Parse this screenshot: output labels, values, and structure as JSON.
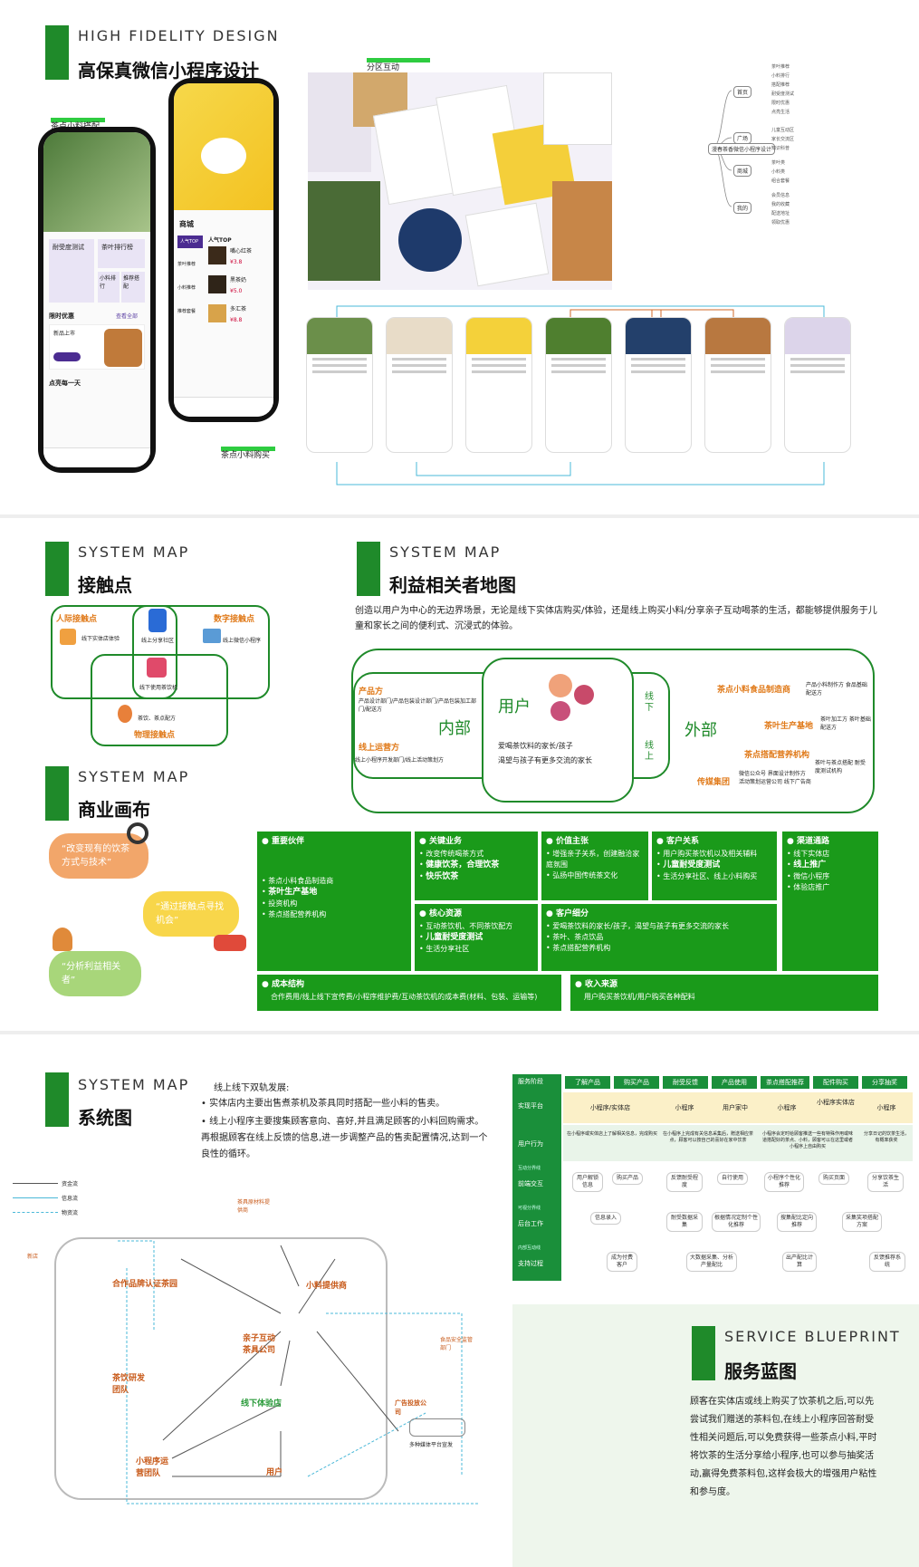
{
  "section1": {
    "title_en": "HIGH FIDELITY DESIGN",
    "title_zh": "高保真微信小程序设计",
    "label_mix": "茶点小料搭配",
    "label_interact": "分区互动",
    "label_buy": "茶点小料购买",
    "phone_left": {
      "card1": "茶叶排行榜",
      "card2": "耐受度测试",
      "card3": "小料排行",
      "card4": "推荐搭配",
      "heading": "限时优惠",
      "promo": "新品上市",
      "footer": "点亮每一天",
      "more": "查看全部"
    },
    "phone_right": {
      "shop": "商城",
      "hot": "人气TOP",
      "item1": "嘴心红茶",
      "item2": "黑茶奶",
      "item3": "多汇茶",
      "price1": "¥3.8",
      "price2": "¥5.0",
      "price3": "¥8.8",
      "side1": "人气TOP",
      "side2": "茶叶推荐",
      "side3": "小料推荐",
      "side4": "推荐套餐"
    },
    "mindmap": {
      "root": "漫春茶香微信小程序设计",
      "branches": [
        {
          "name": "首页",
          "leaves": [
            "茶叶推荐",
            "小料排行",
            "搭配推荐",
            "耐受度测试",
            "限时优惠",
            "点亮生活"
          ]
        },
        {
          "name": "广场",
          "leaves": [
            "儿童互动区",
            "家长交流区",
            "知识科普"
          ]
        },
        {
          "name": "商城",
          "leaves": [
            "茶叶类",
            "小料类",
            "组合套餐"
          ]
        },
        {
          "name": "我的",
          "leaves": [
            "会员信息",
            "我的收藏",
            "配送地址",
            "领取优惠"
          ]
        }
      ]
    }
  },
  "section2": {
    "touch": {
      "title_en": "SYSTEM MAP",
      "title_zh": "接触点",
      "box_human": "人际接触点",
      "box_digital": "数字接触点",
      "box_physical": "物理接触点",
      "item_store": "线下实体店体验",
      "item_share": "线上分享社区",
      "item_wechat": "线上微信小程序",
      "item_vending": "线下使用茶饮机",
      "item_tea": "茶饮、茶点配方"
    },
    "stake": {
      "title_en": "SYSTEM MAP",
      "title_zh": "利益相关者地图",
      "desc": "创造以用户为中心的无边界场景，无论是线下实体店购买/体验，还是线上购买小料/分享亲子互动喝茶的生活，都能够提供服务于儿童和家长之间的便利式、沉浸式的体验。",
      "user": "用户",
      "user_desc1": "爱喝茶饮料的家长/孩子",
      "user_desc2": "渴望与孩子有更多交流的家长",
      "inner": "内部",
      "outer": "外部",
      "offline": "线下",
      "online": "线上",
      "product": "产品方",
      "product_desc": "产品设计部门/产品包装设计部门/产品包装加工部门/配送方",
      "operator": "线上运营方",
      "operator_desc": "线上小程序开发部门/线上活动策划方",
      "snack": "茶点小料食品制造商",
      "snack_desc": "产品小料制作方 食品基础配送方",
      "base": "茶叶生产基地",
      "base_desc": "茶叶加工方 茶叶基础配送方",
      "nutrition": "茶点搭配营养机构",
      "nutrition_desc": "茶叶与茶点搭配 耐受度测试机构",
      "media": "传媒集团",
      "media_desc": "微信公众号 界面设计制作方 活动策划运营公司 线下广告商"
    },
    "canvas": {
      "title_en": "SYSTEM MAP",
      "title_zh": "商业画布",
      "bubble1": "“改变现有的饮茶方式与技术”",
      "bubble2": "“通过接触点寻找机会”",
      "bubble3": "“分析利益相关者”",
      "partners_title": "重要伙伴",
      "partners": [
        "茶点小料食品制造商",
        "茶叶生产基地",
        "投资机构",
        "茶点搭配营养机构"
      ],
      "activities_title": "关键业务",
      "activities": [
        "改变传统喝茶方式",
        "健康饮茶，合理饮茶",
        "快乐饮茶"
      ],
      "value_title": "价值主张",
      "value": [
        "增强亲子关系，创建融洽家庭氛围",
        "弘扬中国传统茶文化"
      ],
      "relation_title": "客户关系",
      "relation": [
        "用户购买茶饮机以及相关辅料",
        "儿童耐受度测试",
        "生活分享社区、线上小料购买"
      ],
      "channel_title": "渠道通路",
      "channel": [
        "线下实体店",
        "线上推广",
        "微信小程序",
        "体验店推广"
      ],
      "resource_title": "核心资源",
      "resource": [
        "互动茶饮机、不同茶饮配方",
        "儿童耐受度测试",
        "生活分享社区"
      ],
      "segment_title": "客户细分",
      "segment": [
        "爱喝茶饮料的家长/孩子，渴望与孩子有更多交流的家长",
        "茶叶、茶点饮品",
        "茶点搭配营养机构"
      ],
      "cost_title": "成本结构",
      "cost": "合作费用/线上线下宣传费/小程序维护费/互动茶饮机的成本费(材料、包装、运输等)",
      "revenue_title": "收入来源",
      "revenue": "用户购买茶饮机/用户购买各种配料"
    }
  },
  "section3": {
    "system": {
      "title_en": "SYSTEM MAP",
      "title_zh": "系统图",
      "desc_head": "线上线下双轨发展:",
      "desc1": "实体店内主要出售煮茶机及茶具同时搭配一些小料的售卖。",
      "desc2": "线上小程序主要搜集顾客意向、喜好,并且满足顾客的小料回购需求。再根据顾客在线上反馈的信息,进一步调整产品的售卖配置情况,达到一个良性的循环。",
      "legend": [
        "资金流",
        "信息流",
        "物资流"
      ],
      "nodes": {
        "brand": "合作品牌认证茶园",
        "supplier": "小料提供商",
        "company": "亲子互动茶具公司",
        "rd": "茶饮研发团队",
        "store": "线下体验店",
        "ops": "小程序运营团队",
        "user": "用户",
        "ad": "广告投放公司",
        "media": "多种媒体平台宣发",
        "food": "食品安全监管部门",
        "tea_supplier": "茶具原材料提供商",
        "new": "新店"
      }
    },
    "blueprint": {
      "title_en": "SERVICE BLUEPRINT",
      "title_zh": "服务蓝图",
      "desc": "顾客在实体店或线上购买了饮茶机之后,可以先尝试我们赠送的茶料包,在线上小程序回答耐受性相关问题后,可以免费获得一些茶点小料,平时将饮茶的生活分享给小程序,也可以参与抽奖活动,赢得免费茶料包,这样会极大的增强用户粘性和参与度。",
      "stages_label": "服务阶段",
      "stages": [
        "了解产品",
        "购买产品",
        "耐受反馈",
        "产品使用",
        "茶点搭配推荐",
        "配件购买",
        "分享抽奖"
      ],
      "rows": [
        "实现平台",
        "用户行为",
        "互动分界线",
        "前端交互",
        "可视分界线",
        "后台工作",
        "内部互动线",
        "支持过程"
      ],
      "platforms": [
        "小程序/实体店",
        "小程序",
        "用户家中",
        "小程序",
        "小程序实体店",
        "小程序"
      ],
      "behaviors": [
        "在小程序或实体店上了解相关信息，完成购买",
        "在小程序上完成有关信息采集后，赠送相应茶点，顾客可以按自己的喜好在家中饮茶",
        "小程序会定时给顾客推送一些有特殊作用或味道搭配好的茶点、小料，顾客可以在这里或者小程序上自由购买",
        "分享日记的饮茶生活，有概率获奖"
      ],
      "front": [
        "用户解锁信息",
        "购买产品",
        "反馈耐受程度",
        "自行使用",
        "小程序个性化推荐",
        "购买页面",
        "分享饮茶生活"
      ],
      "back": [
        "信息录入",
        "耐受数据采集",
        "根据情况定制个性化推荐",
        "搜集配比定向推荐",
        "采集奖项搭配方案"
      ],
      "support": [
        "成为付费客户",
        "大数据采集、分析产量配比",
        "出产配比计算",
        "反馈推荐系统"
      ]
    }
  }
}
